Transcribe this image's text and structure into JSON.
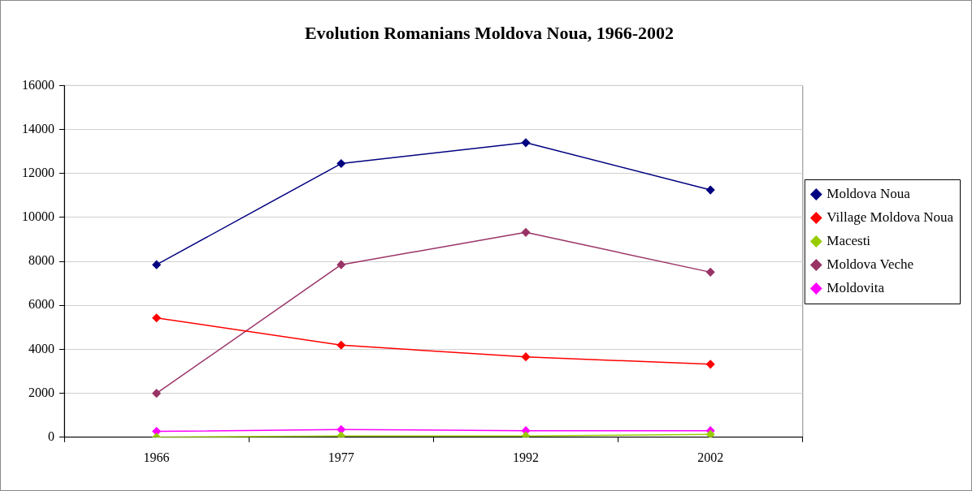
{
  "chart_data": {
    "type": "line",
    "title": "Evolution Romanians Moldova Noua, 1966-2002",
    "categories": [
      "1966",
      "1977",
      "1992",
      "2002"
    ],
    "series": [
      {
        "name": "Moldova Noua",
        "color": "#000080",
        "values": [
          7850,
          12450,
          13400,
          11250
        ]
      },
      {
        "name": "Village Moldova Noua",
        "color": "#ff0000",
        "values": [
          5430,
          4190,
          3660,
          3320
        ]
      },
      {
        "name": "Macesti",
        "color": "#99cc00",
        "values": [
          0,
          60,
          60,
          130
        ]
      },
      {
        "name": "Moldova Veche",
        "color": "#993366",
        "values": [
          2000,
          7850,
          9320,
          7510
        ]
      },
      {
        "name": "Moldovita",
        "color": "#ff00ff",
        "values": [
          270,
          350,
          300,
          300
        ]
      }
    ],
    "ylim": [
      0,
      16000
    ],
    "yticks": [
      0,
      2000,
      4000,
      6000,
      8000,
      10000,
      12000,
      14000,
      16000
    ],
    "grid": "y",
    "legend": "right",
    "marker": "diamond",
    "line_style": "solid"
  }
}
